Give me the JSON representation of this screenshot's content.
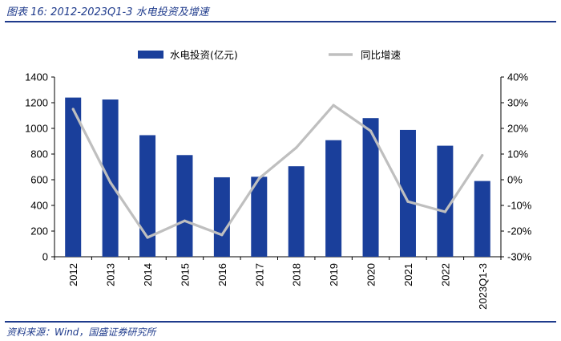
{
  "header": {
    "title": "图表 16:  2012-2023Q1-3 水电投资及增速"
  },
  "footer": {
    "source": "资料来源：Wind，国盛证券研究所"
  },
  "chart_data": {
    "type": "bar",
    "categories": [
      "2012",
      "2013",
      "2014",
      "2015",
      "2016",
      "2017",
      "2018",
      "2019",
      "2020",
      "2021",
      "2022",
      "2023Q1-3"
    ],
    "series": [
      {
        "name": "水电投资(亿元)",
        "type": "bar",
        "axis": "left",
        "values": [
          1240,
          1225,
          947,
          792,
          619,
          623,
          705,
          908,
          1080,
          988,
          865,
          590
        ]
      },
      {
        "name": "同比增速",
        "type": "line",
        "axis": "right",
        "values": [
          27.5,
          -1.0,
          -22.5,
          -16.0,
          -21.5,
          0.5,
          12.5,
          29.0,
          19.0,
          -8.5,
          -12.5,
          9.5
        ]
      }
    ],
    "y_left": {
      "ylim": [
        0,
        1400
      ],
      "ticks": [
        "0",
        "200",
        "400",
        "600",
        "800",
        "1000",
        "1200",
        "1400"
      ]
    },
    "y_right": {
      "ylim": [
        -30,
        40
      ],
      "ticks": [
        "-30%",
        "-20%",
        "-10%",
        "0%",
        "10%",
        "20%",
        "30%",
        "40%"
      ]
    },
    "colors": {
      "bar": "#1a3f9b",
      "line": "#bfbfbf",
      "accent": "#1f3b8c"
    },
    "legend_position": "top",
    "grid": false
  }
}
